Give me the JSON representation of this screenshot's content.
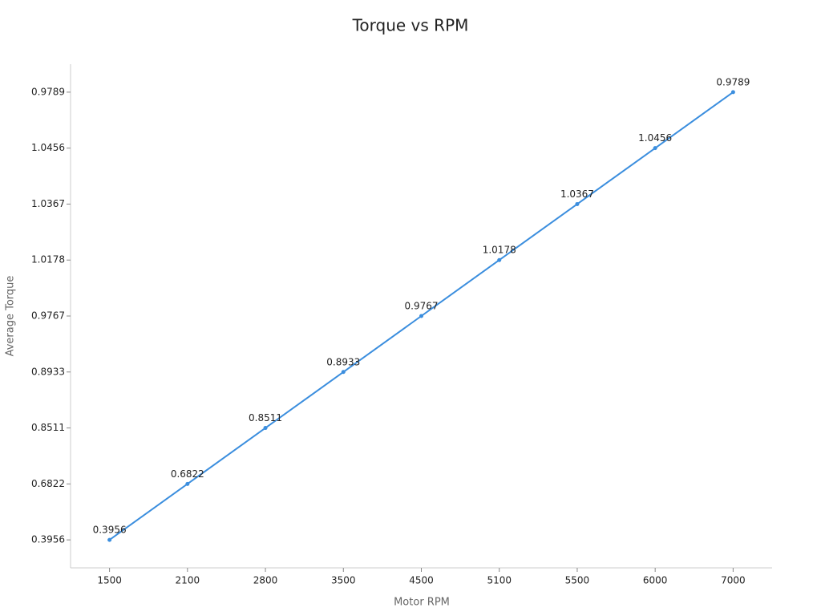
{
  "chart_data": {
    "type": "line",
    "title": "Torque vs RPM",
    "x_label": "Motor RPM",
    "y_label": "Average Torque",
    "categories": [
      "1500",
      "2100",
      "2800",
      "3500",
      "4500",
      "5100",
      "5500",
      "6000",
      "7000"
    ],
    "values": [
      0.3956,
      0.6822,
      0.8511,
      0.8933,
      0.9767,
      1.0178,
      1.0367,
      1.0456,
      0.9789
    ],
    "y_scale": "category",
    "color": "#3b8ede"
  }
}
